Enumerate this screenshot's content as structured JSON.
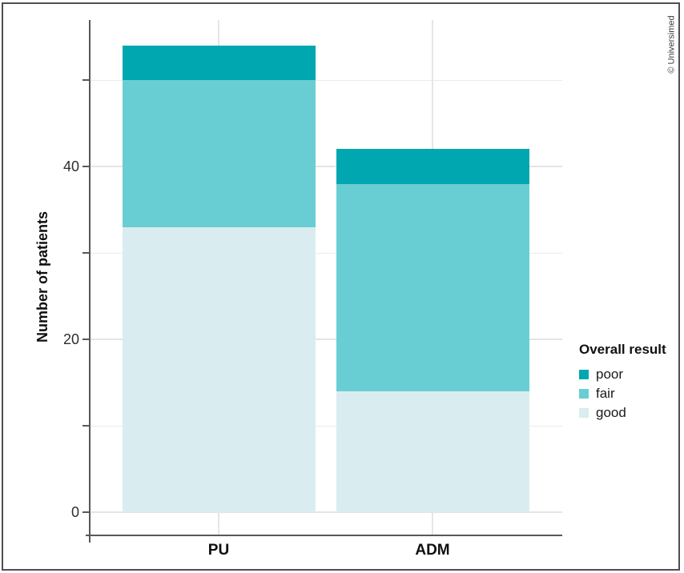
{
  "figure": {
    "credit": "© Universimed"
  },
  "chart_data": {
    "type": "bar",
    "stacked": true,
    "title": "",
    "categories": [
      "PU",
      "ADM"
    ],
    "series": [
      {
        "name": "poor",
        "color": "#00a7b0",
        "values": [
          4,
          4
        ]
      },
      {
        "name": "fair",
        "color": "#69ced3",
        "values": [
          17,
          24
        ]
      },
      {
        "name": "good",
        "color": "#d9edf0",
        "values": [
          33,
          14
        ]
      }
    ],
    "totals": [
      54,
      42
    ],
    "xlabel": "",
    "ylabel": "Number of patients",
    "ylim": [
      0,
      56.7
    ],
    "yticks": [
      0,
      10,
      20,
      30,
      40,
      50
    ],
    "ytick_labels_shown": [
      "0",
      "20",
      "40"
    ],
    "grid": true,
    "legend": {
      "title": "Overall result",
      "position": "right",
      "entries": [
        "poor",
        "fair",
        "good"
      ]
    }
  }
}
